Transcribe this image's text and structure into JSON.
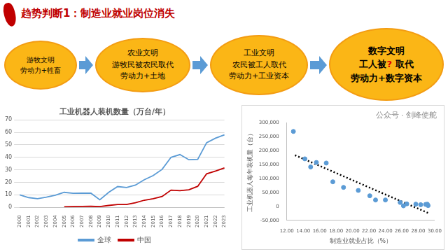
{
  "title": {
    "lead": "趋势判断1：",
    "text": "制造业就业岗位消失"
  },
  "flow": [
    {
      "lines": [
        "游牧文明",
        "劳动力+牲畜"
      ]
    },
    {
      "lines": [
        "农业文明",
        "游牧民被农民取代",
        "劳动力+土地"
      ]
    },
    {
      "lines": [
        "工业文明",
        "农民被工人取代",
        "劳动力+工业资本"
      ]
    },
    {
      "lines": [
        "数字文明",
        [
          "工人被",
          "?",
          " 取代"
        ],
        "劳动力+数字资本"
      ],
      "highlight_color": "#e00000"
    }
  ],
  "watermark": "公众号 · 剑峰使舵",
  "chart_data": [
    {
      "type": "line",
      "title": "工业机器人装机数量（万台/年）",
      "categories": [
        "2000",
        "2001",
        "2002",
        "2003",
        "2004",
        "2005",
        "2006",
        "2007",
        "2008",
        "2009",
        "2010",
        "2011",
        "2012",
        "2013",
        "2014",
        "2015",
        "2016",
        "2017",
        "2018",
        "2019",
        "2020",
        "2021",
        "2022",
        "2023"
      ],
      "series": [
        {
          "name": "全球",
          "color": "#5b9bd5",
          "values": [
            10,
            7.8,
            6.9,
            8.1,
            9.7,
            12,
            11.2,
            11.4,
            11.3,
            6,
            12,
            16.6,
            15.9,
            17.8,
            22.1,
            25.4,
            30.4,
            40,
            42.2,
            38.1,
            38.4,
            51.7,
            55.3,
            58
          ]
        },
        {
          "name": "中国",
          "color": "#c00000",
          "values": [
            null,
            null,
            null,
            null,
            null,
            0.4,
            0.6,
            0.7,
            0.8,
            0.6,
            1.5,
            2.3,
            2.3,
            3.7,
            5.7,
            6.9,
            8.7,
            13.8,
            13.3,
            14,
            16.8,
            26.8,
            29,
            31.5
          ]
        }
      ],
      "ylim": [
        0,
        70
      ],
      "yticks": [
        0,
        10,
        20,
        30,
        40,
        50,
        60,
        70
      ],
      "grid": true,
      "legend": "bottom"
    },
    {
      "type": "scatter",
      "x_label": "制造业就业占比（%）",
      "y_label": "工业机器人每年装机量（台）",
      "series": [
        {
          "type": "scatter",
          "color": "#5b9bd5",
          "marker": "circle",
          "x": [
            12.8,
            14.2,
            14.9,
            15.6,
            16.8,
            17.6,
            18.9,
            20.7,
            22.1,
            22.8,
            24.0,
            25.8,
            26.2,
            26.6,
            27.7,
            28.3,
            28.9,
            29.1,
            29.2
          ],
          "values": [
            268000,
            170000,
            141000,
            157000,
            155000,
            88000,
            68000,
            57000,
            38000,
            23000,
            23000,
            14000,
            2000,
            9000,
            8000,
            6000,
            7000,
            8000,
            3000
          ]
        },
        {
          "type": "line",
          "color": "#000000",
          "line_style": "dotted",
          "x": [
            13.0,
            29.3
          ],
          "values": [
            183000,
            -25000
          ]
        }
      ],
      "xlim": [
        12,
        30
      ],
      "xticks": [
        {
          "value": 12,
          "label": "12.00"
        },
        {
          "value": 14,
          "label": "14.00"
        },
        {
          "value": 16,
          "label": "16.00"
        },
        {
          "value": 18,
          "label": "18.00"
        },
        {
          "value": 20,
          "label": "20.00"
        },
        {
          "value": 22,
          "label": "22.00"
        },
        {
          "value": 24,
          "label": "24.00"
        },
        {
          "value": 26,
          "label": "26.00"
        },
        {
          "value": 28,
          "label": "28.00"
        },
        {
          "value": 30,
          "label": "30.00"
        }
      ],
      "ylim": [
        -50000,
        300000
      ],
      "yticks": [
        {
          "value": -50000,
          "label": "-50,000"
        },
        0,
        {
          "value": 50000,
          "label": "50,000"
        },
        {
          "value": 100000,
          "label": "100,000"
        },
        {
          "value": 150000,
          "label": "150,000"
        },
        {
          "value": 200000,
          "label": "200,000"
        },
        {
          "value": 250000,
          "label": "250,000"
        },
        {
          "value": 300000,
          "label": "300,000"
        }
      ],
      "grid": false
    }
  ]
}
